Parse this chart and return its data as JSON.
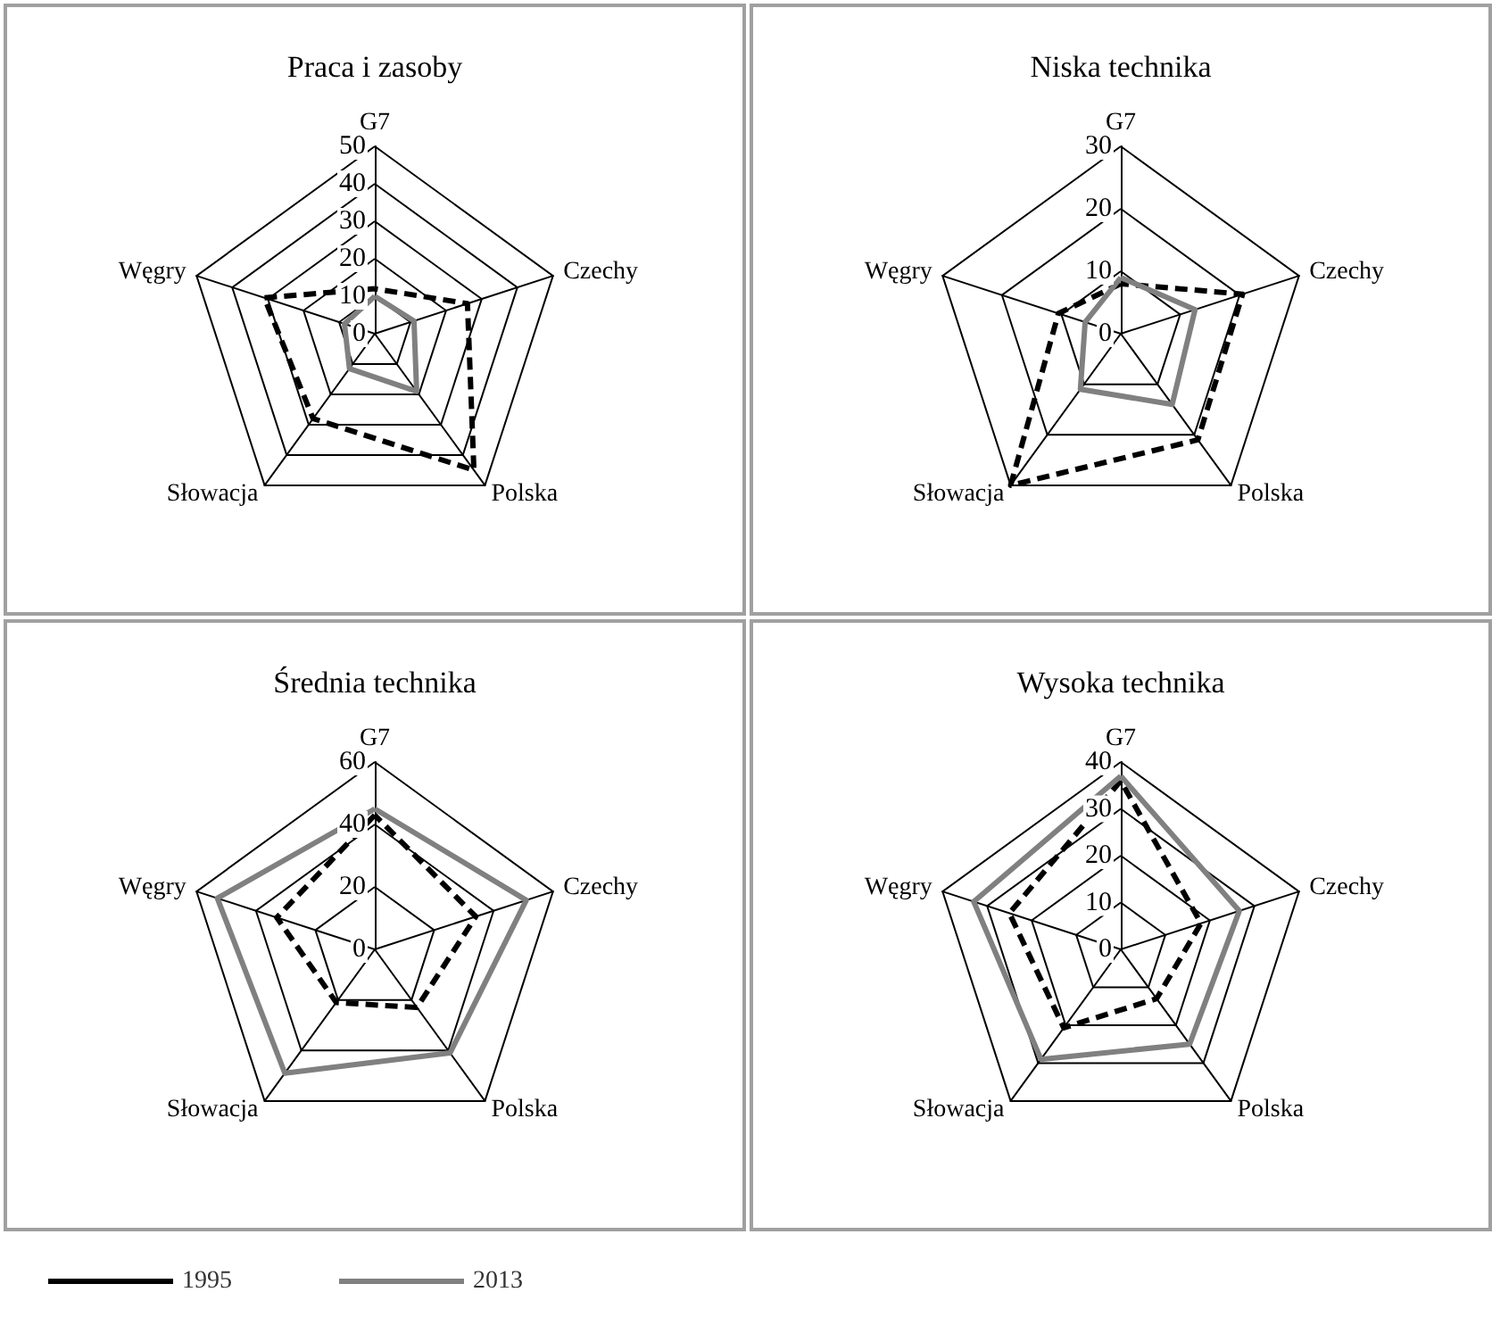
{
  "chart_data": [
    {
      "type": "radar",
      "title": "Praca i zasoby",
      "categories": [
        "G7",
        "Czechy",
        "Polska",
        "Słowacja",
        "Węgry"
      ],
      "ylim": [
        0,
        50
      ],
      "yticks": [
        0,
        10,
        20,
        30,
        40,
        50
      ],
      "series": [
        {
          "color": "#000000",
          "line_style": "dashed",
          "values": [
            12,
            26,
            45,
            28,
            31
          ]
        },
        {
          "color": "#808080",
          "line_style": "solid",
          "values": [
            10,
            11,
            19,
            11.5,
            8.5
          ]
        }
      ]
    },
    {
      "type": "radar",
      "title": "Niska technika",
      "categories": [
        "G7",
        "Czechy",
        "Polska",
        "Słowacja",
        "Węgry"
      ],
      "ylim": [
        0,
        30
      ],
      "yticks": [
        0,
        10,
        20,
        30
      ],
      "series": [
        {
          "color": "#000000",
          "line_style": "dashed",
          "values": [
            8,
            20.5,
            21,
            30,
            10.5
          ]
        },
        {
          "color": "#808080",
          "line_style": "solid",
          "values": [
            9,
            12.5,
            14,
            11,
            6
          ]
        }
      ]
    },
    {
      "type": "radar",
      "title": "Średnia technika",
      "categories": [
        "G7",
        "Czechy",
        "Polska",
        "Słowacja",
        "Węgry"
      ],
      "ylim": [
        0,
        60
      ],
      "yticks": [
        0,
        20,
        40,
        60
      ],
      "legend": "bottom left",
      "series": [
        {
          "name": "1995",
          "color": "#000000",
          "line_style": "dashed",
          "values": [
            43,
            34,
            23,
            21,
            33
          ]
        },
        {
          "name": "2013",
          "color": "#808080",
          "line_style": "solid",
          "values": [
            45,
            51,
            41,
            49,
            53
          ]
        }
      ]
    },
    {
      "type": "radar",
      "title": "Wysoka technika",
      "categories": [
        "G7",
        "Czechy",
        "Polska",
        "Słowacja",
        "Węgry"
      ],
      "ylim": [
        0,
        40
      ],
      "yticks": [
        0,
        10,
        20,
        30,
        40
      ],
      "series": [
        {
          "color": "#000000",
          "line_style": "dashed",
          "values": [
            36,
            18,
            13,
            20.7,
            25
          ]
        },
        {
          "color": "#808080",
          "line_style": "solid",
          "values": [
            37,
            26.6,
            25,
            29,
            33
          ]
        }
      ]
    }
  ]
}
